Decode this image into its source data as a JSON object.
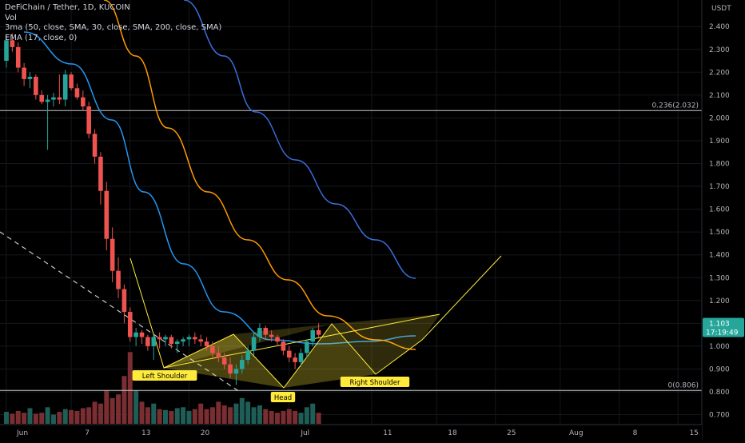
{
  "legend": {
    "symbol": "DeFiChain / Tether, 1D, KUCOIN",
    "volume": "Vol",
    "ma3": "3ma (50, close, SMA, 30, close, SMA, 200, close, SMA)",
    "ema": "EMA (17, close, 0)"
  },
  "price_scale": {
    "currency": "USDT",
    "last_price": "1.103",
    "countdown": "17:19:49"
  },
  "fib_levels": [
    {
      "label": "0.236(2.032)",
      "value": 2.032
    },
    {
      "label": "0(0.806)",
      "value": 0.806
    }
  ],
  "pattern_labels": [
    {
      "text": "Left Shoulder",
      "index": 25,
      "value": 0.865
    },
    {
      "text": "Head",
      "index": 48,
      "value": 0.777
    },
    {
      "text": "Right Shoulder",
      "index": 66,
      "value": 0.865
    }
  ],
  "colors": {
    "up": "#26a69a",
    "down": "#ef5350",
    "vol_up": "#1f5e57",
    "vol_down": "#7a2e32",
    "sma50": "#2196f3",
    "sma30": "#ff9800",
    "sma200": "#3a6dde",
    "pattern": "#ffeb3b",
    "last_price_bg": "#26a69a"
  },
  "chart_data": {
    "type": "candlestick",
    "x_ticks": [
      {
        "label": "Jun",
        "index": 0
      },
      {
        "label": "7",
        "index": 11
      },
      {
        "label": "13",
        "index": 21
      },
      {
        "label": "20",
        "index": 31
      },
      {
        "label": "Jul",
        "index": 48
      },
      {
        "label": "11",
        "index": 62
      },
      {
        "label": "18",
        "index": 73
      },
      {
        "label": "25",
        "index": 83
      },
      {
        "label": "Aug",
        "index": 94
      },
      {
        "label": "8",
        "index": 104
      },
      {
        "label": "15",
        "index": 114
      }
    ],
    "y_ticks": [
      2.4,
      2.3,
      2.2,
      2.1,
      2.0,
      1.9,
      1.8,
      1.7,
      1.6,
      1.5,
      1.4,
      1.3,
      1.2,
      1.1,
      1.0,
      0.9,
      0.8,
      0.7
    ],
    "y_range": [
      0.68,
      2.5
    ],
    "ohlc": [
      [
        2.25,
        2.36,
        2.22,
        2.34
      ],
      [
        2.34,
        2.37,
        2.29,
        2.31
      ],
      [
        2.31,
        2.33,
        2.2,
        2.22
      ],
      [
        2.22,
        2.24,
        2.14,
        2.17
      ],
      [
        2.17,
        2.2,
        2.13,
        2.18
      ],
      [
        2.18,
        2.19,
        2.08,
        2.1
      ],
      [
        2.1,
        2.12,
        2.06,
        2.07
      ],
      [
        2.07,
        2.1,
        1.86,
        2.08
      ],
      [
        2.08,
        2.11,
        2.05,
        2.09
      ],
      [
        2.09,
        2.19,
        2.06,
        2.08
      ],
      [
        2.08,
        2.21,
        2.05,
        2.19
      ],
      [
        2.19,
        2.2,
        2.12,
        2.13
      ],
      [
        2.13,
        2.15,
        2.08,
        2.09
      ],
      [
        2.09,
        2.12,
        2.03,
        2.05
      ],
      [
        2.05,
        2.07,
        1.91,
        1.93
      ],
      [
        1.93,
        1.95,
        1.8,
        1.83
      ],
      [
        1.83,
        1.85,
        1.62,
        1.68
      ],
      [
        1.68,
        1.72,
        1.42,
        1.47
      ],
      [
        1.47,
        1.52,
        1.28,
        1.33
      ],
      [
        1.33,
        1.39,
        1.21,
        1.25
      ],
      [
        1.25,
        1.27,
        1.1,
        1.15
      ],
      [
        1.15,
        1.17,
        1.02,
        1.04
      ],
      [
        1.04,
        1.08,
        1.0,
        1.06
      ],
      [
        1.06,
        1.07,
        1.01,
        1.04
      ],
      [
        1.04,
        1.05,
        0.98,
        1.0
      ],
      [
        1.0,
        1.05,
        0.94,
        1.04
      ],
      [
        1.04,
        1.06,
        0.99,
        1.03
      ],
      [
        1.03,
        1.05,
        1.0,
        1.04
      ],
      [
        1.04,
        1.05,
        0.99,
        1.01
      ],
      [
        1.01,
        1.03,
        0.97,
        1.02
      ],
      [
        1.02,
        1.04,
        1.0,
        1.03
      ],
      [
        1.03,
        1.05,
        1.0,
        1.04
      ],
      [
        1.04,
        1.06,
        1.01,
        1.03
      ],
      [
        1.03,
        1.05,
        1.0,
        1.02
      ],
      [
        1.02,
        1.04,
        0.98,
        1.0
      ],
      [
        1.0,
        1.02,
        0.95,
        0.97
      ],
      [
        0.97,
        1.0,
        0.93,
        0.95
      ],
      [
        0.95,
        0.97,
        0.9,
        0.92
      ],
      [
        0.92,
        0.95,
        0.86,
        0.88
      ],
      [
        0.88,
        0.92,
        0.83,
        0.9
      ],
      [
        0.9,
        0.96,
        0.88,
        0.94
      ],
      [
        0.94,
        1.0,
        0.92,
        0.98
      ],
      [
        0.98,
        1.06,
        0.96,
        1.04
      ],
      [
        1.04,
        1.1,
        1.02,
        1.08
      ],
      [
        1.08,
        1.09,
        1.03,
        1.05
      ],
      [
        1.05,
        1.07,
        1.02,
        1.04
      ],
      [
        1.04,
        1.05,
        1.0,
        1.02
      ],
      [
        1.02,
        1.03,
        0.96,
        0.98
      ],
      [
        0.98,
        1.0,
        0.93,
        0.95
      ],
      [
        0.95,
        0.97,
        0.9,
        0.93
      ],
      [
        0.93,
        0.99,
        0.91,
        0.97
      ],
      [
        0.97,
        1.03,
        0.95,
        1.02
      ],
      [
        1.02,
        1.08,
        1.0,
        1.07
      ],
      [
        1.07,
        1.1,
        1.04,
        1.05
      ]
    ],
    "ohlc_start_index": 0,
    "volumes": [
      0.65,
      0.55,
      0.7,
      0.6,
      0.85,
      0.55,
      0.6,
      0.9,
      0.5,
      0.65,
      0.8,
      0.75,
      0.7,
      0.85,
      0.9,
      1.2,
      1.1,
      1.8,
      1.4,
      1.6,
      2.6,
      3.9,
      1.8,
      1.2,
      0.9,
      1.1,
      0.8,
      0.75,
      0.7,
      0.85,
      0.9,
      0.7,
      0.8,
      1.1,
      0.8,
      0.9,
      1.2,
      1.0,
      0.9,
      1.1,
      1.4,
      1.2,
      0.9,
      1.0,
      0.8,
      0.7,
      0.6,
      0.7,
      0.8,
      0.7,
      0.6,
      0.9,
      1.1,
      0.6
    ]
  }
}
